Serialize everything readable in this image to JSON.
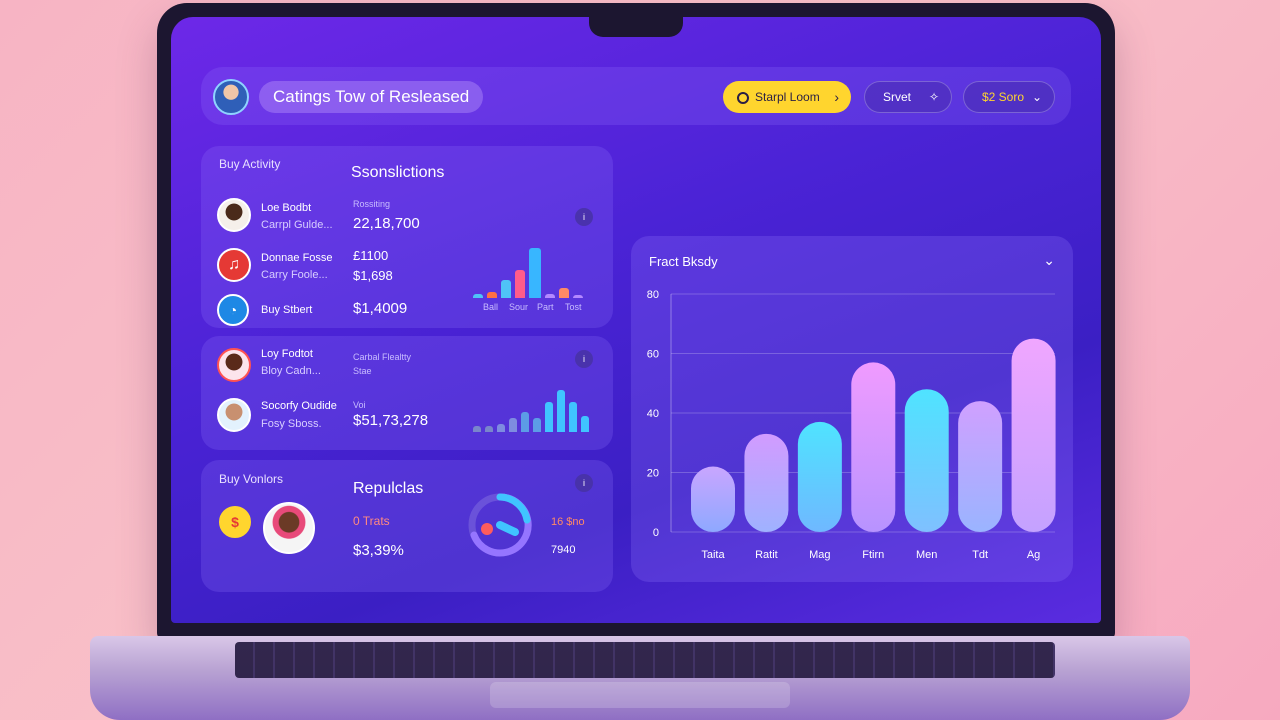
{
  "header": {
    "title": "Catings Tow of Resleased",
    "btn_primary": "Starpl Loom",
    "btn_secondary": "Srvet",
    "btn_third": "$2 Soro"
  },
  "activity": {
    "label": "Buy Activity",
    "heading": "Ssonslictions",
    "rows": [
      {
        "name": "Loe Bodbt",
        "sub": "Carrpl Gulde...",
        "value_label": "Rossiting",
        "value": "22,18,700"
      },
      {
        "name": "Donnae Fosse",
        "sub": "Carry Foole...",
        "value": "£1100",
        "value2": "$1,698"
      },
      {
        "name": "Buy Stbert",
        "value": "$1,4009"
      }
    ],
    "mini_labels": [
      "Ball",
      "Sour",
      "Part",
      "Tost"
    ]
  },
  "activity2": {
    "rows": [
      {
        "name": "Loy Fodtot",
        "sub": "Bloy Cadn...",
        "value_label": "Carbal Flealtty",
        "value_sub": "Stae"
      },
      {
        "name": "Socorfy Oudide",
        "sub": "Fosy Sboss.",
        "value_label": "Voi",
        "value": "$51,73,278"
      }
    ]
  },
  "vendors": {
    "label": "Buy Vonlors",
    "heading": "Repulclas",
    "stat1": "0 Trats",
    "stat2": "$3,39%",
    "gauge_val": "16 $no",
    "gauge_sub": "7940"
  },
  "big_chart": {
    "title": "Fract Bksdy"
  },
  "chart_data": {
    "type": "bar",
    "title": "Fract Bksdy",
    "categories": [
      "Taita",
      "Ratit",
      "Mag",
      "Ftirn",
      "Men",
      "Tdt",
      "Ag"
    ],
    "values": [
      22,
      33,
      37,
      57,
      48,
      44,
      65
    ],
    "yticks": [
      0,
      20,
      40,
      60,
      80
    ],
    "ylim": [
      0,
      80
    ]
  },
  "colors": {
    "accent_yellow": "#ffd52e",
    "screen_bg": "#4b23d6"
  }
}
